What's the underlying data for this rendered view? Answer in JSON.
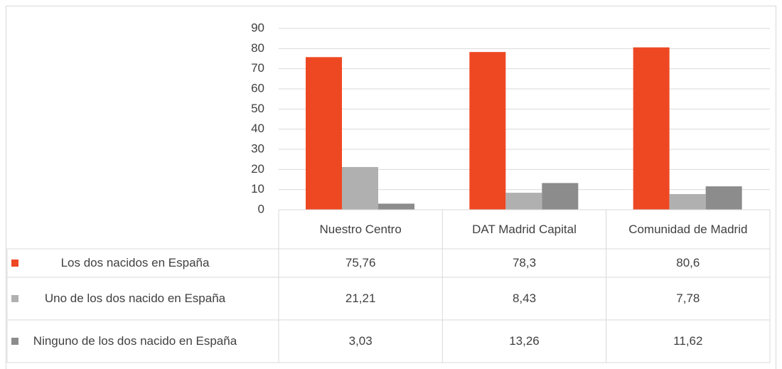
{
  "chart_data": {
    "type": "bar",
    "categories": [
      "Nuestro Centro",
      "DAT Madrid Capital",
      "Comunidad de Madrid"
    ],
    "series": [
      {
        "name": "Los dos nacidos en España",
        "color": "#ee4823",
        "values": [
          75.76,
          78.3,
          80.6
        ],
        "value_labels": [
          "75,76",
          "78,3",
          "80,6"
        ]
      },
      {
        "name": "Uno de los dos nacido en España",
        "color": "#b0b0b0",
        "values": [
          21.21,
          8.43,
          7.78
        ],
        "value_labels": [
          "21,21",
          "8,43",
          "7,78"
        ]
      },
      {
        "name": "Ninguno de los dos nacido en España",
        "color": "#8c8c8c",
        "values": [
          3.03,
          13.26,
          11.62
        ],
        "value_labels": [
          "3,03",
          "13,26",
          "11,62"
        ]
      }
    ],
    "ylim": [
      0,
      90
    ],
    "yticks": [
      0,
      10,
      20,
      30,
      40,
      50,
      60,
      70,
      80,
      90
    ],
    "grid": true
  }
}
